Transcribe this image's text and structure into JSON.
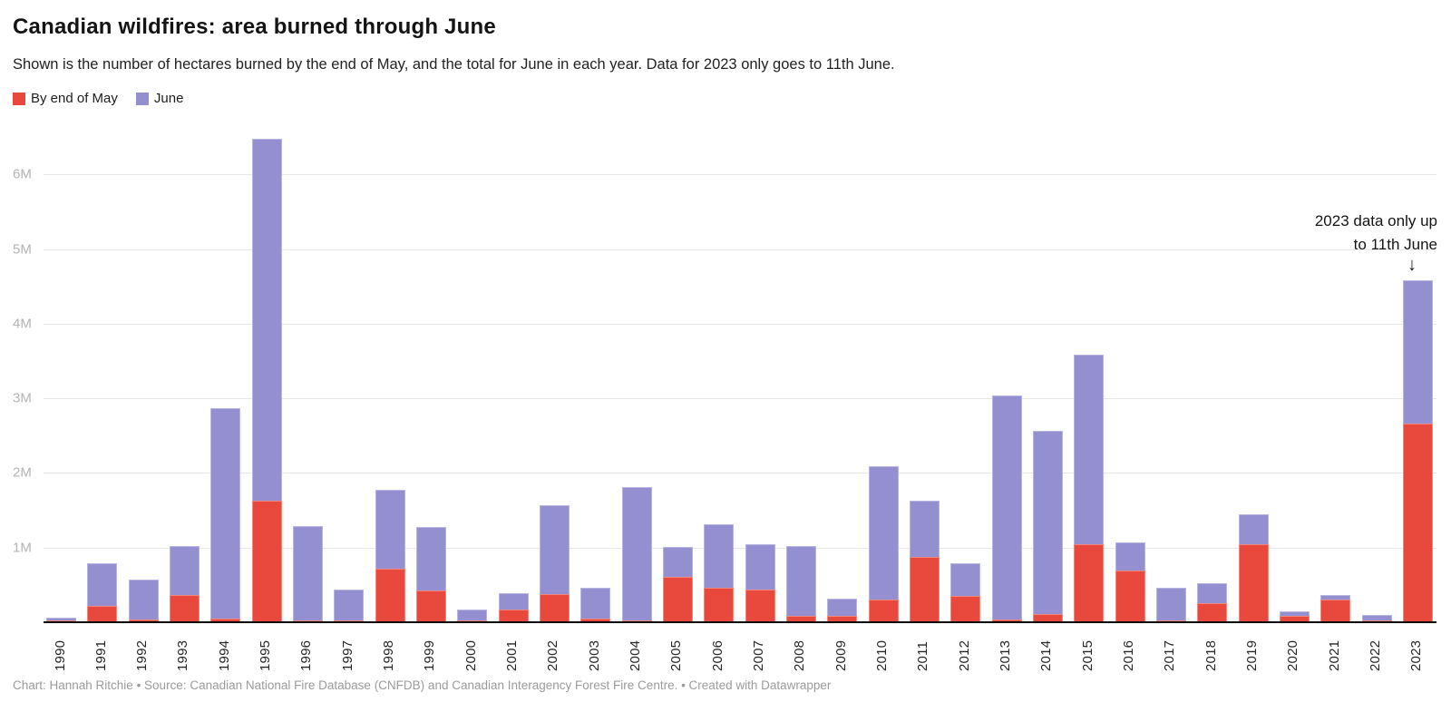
{
  "header": {
    "title": "Canadian wildfires: area burned through June",
    "subtitle": "Shown is the number of hectares burned by the end of May, and the total for June in each year. Data for 2023 only goes to 11th June."
  },
  "legend": {
    "items": [
      {
        "label": "By end of May",
        "color": "#e9493c"
      },
      {
        "label": "June",
        "color": "#938fd0"
      }
    ]
  },
  "annotation": {
    "line1": "2023 data only up",
    "line2": "to 11th June",
    "arrow": "↓",
    "target_year": "2023"
  },
  "footer": {
    "text": "Chart: Hannah Ritchie • Source: Canadian National Fire Database (CNFDB) and Canadian Interagency Forest Fire Centre. • Created with Datawrapper"
  },
  "chart_data": {
    "type": "bar",
    "stacked": true,
    "title": "Canadian wildfires: area burned through June",
    "unit": "hectares, millions",
    "categories": [
      1990,
      1991,
      1992,
      1993,
      1994,
      1995,
      1996,
      1997,
      1998,
      1999,
      2000,
      2001,
      2002,
      2003,
      2004,
      2005,
      2006,
      2007,
      2008,
      2009,
      2010,
      2011,
      2012,
      2013,
      2014,
      2015,
      2016,
      2017,
      2018,
      2019,
      2020,
      2021,
      2022,
      2023
    ],
    "series": [
      {
        "name": "By end of May",
        "color": "#e9493c",
        "values": [
          0.03,
          0.22,
          0.04,
          0.37,
          0.05,
          1.63,
          0.02,
          0.02,
          0.72,
          0.42,
          0.02,
          0.17,
          0.38,
          0.05,
          0.02,
          0.61,
          0.46,
          0.44,
          0.09,
          0.09,
          0.3,
          0.88,
          0.35,
          0.04,
          0.11,
          1.04,
          0.69,
          0.02,
          0.25,
          1.04,
          0.08,
          0.3,
          0.02,
          2.66
        ]
      },
      {
        "name": "June",
        "color": "#938fd0",
        "values": [
          0.03,
          0.57,
          0.53,
          0.65,
          2.82,
          4.85,
          1.27,
          0.42,
          1.06,
          0.85,
          0.15,
          0.22,
          1.19,
          0.41,
          1.79,
          0.4,
          0.85,
          0.61,
          0.93,
          0.22,
          1.79,
          0.75,
          0.44,
          3.0,
          2.45,
          2.54,
          0.38,
          0.44,
          0.27,
          0.4,
          0.07,
          0.06,
          0.08,
          1.92
        ]
      }
    ],
    "totals": [
      0.06,
      0.79,
      0.57,
      1.02,
      2.87,
      6.48,
      1.29,
      0.44,
      1.78,
      1.27,
      0.17,
      0.39,
      1.57,
      0.46,
      1.81,
      1.01,
      1.31,
      1.05,
      1.02,
      0.31,
      2.09,
      1.63,
      0.79,
      3.04,
      2.56,
      3.58,
      1.07,
      0.46,
      0.52,
      1.44,
      0.15,
      0.36,
      0.1,
      4.58
    ],
    "ylim": [
      0,
      6.6
    ],
    "yticks": [
      "1M",
      "2M",
      "3M",
      "4M",
      "5M",
      "6M"
    ],
    "grid": true,
    "legend_position": "top-left",
    "x_label_rotation": -90
  }
}
